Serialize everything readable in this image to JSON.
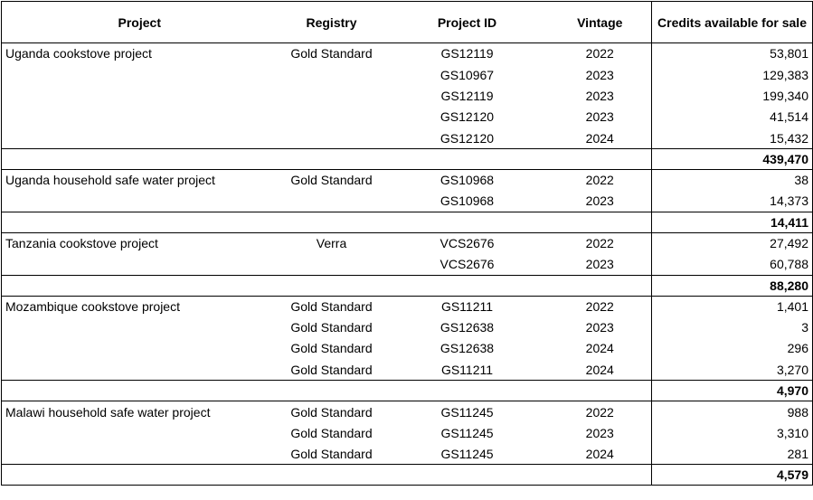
{
  "headers": {
    "project": "Project",
    "registry": "Registry",
    "project_id": "Project ID",
    "vintage": "Vintage",
    "credits": "Credits available for sale"
  },
  "groups": [
    {
      "project": "Uganda cookstove project",
      "rows": [
        {
          "registry": "Gold Standard",
          "project_id": "GS12119",
          "vintage": "2022",
          "credits": "53,801"
        },
        {
          "registry": "",
          "project_id": "GS10967",
          "vintage": "2023",
          "credits": "129,383"
        },
        {
          "registry": "",
          "project_id": "GS12119",
          "vintage": "2023",
          "credits": "199,340"
        },
        {
          "registry": "",
          "project_id": "GS12120",
          "vintage": "2023",
          "credits": "41,514"
        },
        {
          "registry": "",
          "project_id": "GS12120",
          "vintage": "2024",
          "credits": "15,432"
        }
      ],
      "total": "439,470"
    },
    {
      "project": "Uganda household safe water project",
      "rows": [
        {
          "registry": "Gold Standard",
          "project_id": "GS10968",
          "vintage": "2022",
          "credits": "38"
        },
        {
          "registry": "",
          "project_id": "GS10968",
          "vintage": "2023",
          "credits": "14,373"
        }
      ],
      "total": "14,411"
    },
    {
      "project": "Tanzania cookstove project",
      "rows": [
        {
          "registry": "Verra",
          "project_id": "VCS2676",
          "vintage": "2022",
          "credits": "27,492"
        },
        {
          "registry": "",
          "project_id": "VCS2676",
          "vintage": "2023",
          "credits": "60,788"
        }
      ],
      "total": "88,280"
    },
    {
      "project": "Mozambique cookstove project",
      "rows": [
        {
          "registry": "Gold Standard",
          "project_id": "GS11211",
          "vintage": "2022",
          "credits": "1,401"
        },
        {
          "registry": "Gold Standard",
          "project_id": "GS12638",
          "vintage": "2023",
          "credits": "3"
        },
        {
          "registry": "Gold Standard",
          "project_id": "GS12638",
          "vintage": "2024",
          "credits": "296"
        },
        {
          "registry": "Gold Standard",
          "project_id": "GS11211",
          "vintage": "2024",
          "credits": "3,270"
        }
      ],
      "total": "4,970"
    },
    {
      "project": "Malawi household safe water project",
      "rows": [
        {
          "registry": "Gold Standard",
          "project_id": "GS11245",
          "vintage": "2022",
          "credits": "988"
        },
        {
          "registry": "Gold Standard",
          "project_id": "GS11245",
          "vintage": "2023",
          "credits": "3,310"
        },
        {
          "registry": "Gold Standard",
          "project_id": "GS11245",
          "vintage": "2024",
          "credits": "281"
        }
      ],
      "total": "4,579"
    }
  ]
}
